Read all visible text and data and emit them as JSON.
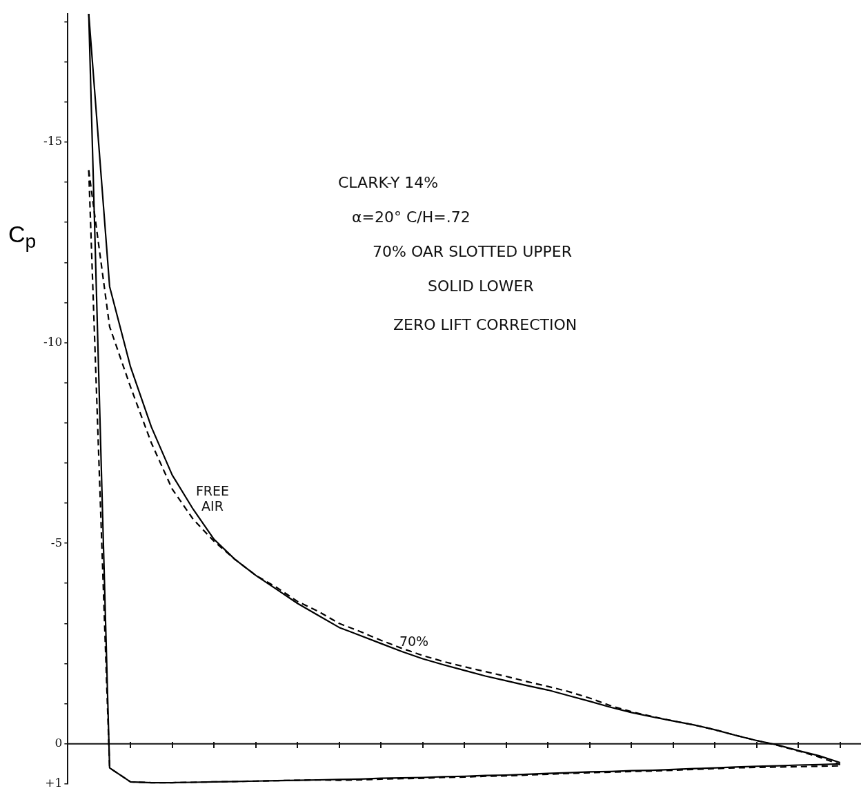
{
  "chart_data": {
    "type": "line",
    "ylabel": "C$_{p}$",
    "annotations": [
      "CLARK-Y 14%",
      "α=20°   C/H=.72",
      "70% OAR SLOTTED UPPER",
      "SOLID LOWER",
      "ZERO LIFT CORRECTION"
    ],
    "categories": [
      null,
      null,
      null,
      null,
      null,
      null,
      null,
      null,
      null,
      null,
      null,
      null,
      null,
      null,
      null,
      null,
      null,
      null,
      null,
      null,
      null,
      null,
      null,
      null,
      null,
      null,
      null,
      null,
      null,
      null,
      null,
      null,
      null,
      null,
      null,
      null,
      null,
      null,
      null
    ],
    "ylim": [
      1,
      -18.2
    ],
    "yticks": [
      {
        "value": 1,
        "label": "+1"
      },
      0,
      {
        "value": -1,
        "label": null
      },
      {
        "value": -2,
        "label": null
      },
      {
        "value": -3,
        "label": null
      },
      {
        "value": -4,
        "label": null
      },
      -5,
      {
        "value": -6,
        "label": null
      },
      {
        "value": -7,
        "label": null
      },
      {
        "value": -8,
        "label": null
      },
      {
        "value": -9,
        "label": null
      },
      -10,
      {
        "value": -11,
        "label": null
      },
      {
        "value": -12,
        "label": null
      },
      {
        "value": -13,
        "label": null
      },
      {
        "value": -14,
        "label": null
      },
      -15,
      {
        "value": -16,
        "label": null
      },
      {
        "value": -17,
        "label": null
      },
      {
        "value": -18,
        "label": null
      }
    ],
    "ref_lines": [
      {
        "axis": "y",
        "value": 0,
        "color": "#111111"
      }
    ],
    "tick_labels": "y",
    "legend": false,
    "grid": false,
    "marker": "none",
    "series": [
      {
        "name": "FREE AIR",
        "color": "#000000",
        "line_style": "solid",
        "values": [
          null,
          -18.2,
          -11.4,
          -9.4,
          -7.9,
          -6.7,
          -5.85,
          -5.1,
          -4.6,
          -4.2,
          -3.85,
          -3.5,
          -3.2,
          -2.9,
          -2.7,
          -2.5,
          -2.3,
          -2.12,
          -1.97,
          -1.83,
          -1.69,
          -1.57,
          -1.45,
          -1.34,
          -1.2,
          -1.06,
          -0.91,
          -0.78,
          -0.67,
          -0.57,
          -0.47,
          -0.35,
          -0.21,
          -0.08,
          0.03,
          0.17,
          0.3,
          0.47,
          null
        ]
      },
      {
        "color": "#000000",
        "line_style": "solid",
        "values": [
          null,
          -18.2,
          0.6,
          0.95,
          0.97,
          0.97,
          0.96,
          0.95,
          0.94,
          0.93,
          0.92,
          0.91,
          0.9,
          0.89,
          0.88,
          0.86,
          0.85,
          0.84,
          0.82,
          0.81,
          0.79,
          0.78,
          0.76,
          0.74,
          0.72,
          0.7,
          0.69,
          0.67,
          0.66,
          0.64,
          0.62,
          0.6,
          0.58,
          0.56,
          0.55,
          0.53,
          0.52,
          0.5,
          null
        ]
      },
      {
        "name": "70%",
        "color": "#000000",
        "line_style": "dashed",
        "values": [
          null,
          -14.3,
          -10.4,
          -8.9,
          -7.5,
          -6.35,
          -5.6,
          -5.05,
          -4.6,
          -4.2,
          -3.9,
          -3.55,
          -3.3,
          -3.0,
          -2.8,
          -2.58,
          -2.38,
          -2.2,
          -2.05,
          -1.92,
          -1.8,
          -1.68,
          -1.55,
          -1.43,
          -1.3,
          -1.14,
          -0.95,
          -0.8,
          -0.68,
          -0.57,
          -0.47,
          -0.35,
          -0.21,
          -0.08,
          0.04,
          0.18,
          0.33,
          0.52,
          null
        ]
      },
      {
        "color": "#000000",
        "line_style": "dashed",
        "values": [
          null,
          -14.3,
          0.6,
          0.95,
          0.97,
          0.97,
          0.96,
          0.95,
          0.94,
          0.93,
          0.92,
          0.91,
          0.9,
          0.91,
          0.9,
          0.88,
          0.87,
          0.86,
          0.84,
          0.83,
          0.81,
          0.8,
          0.78,
          0.76,
          0.74,
          0.72,
          0.71,
          0.69,
          0.68,
          0.66,
          0.64,
          0.62,
          0.6,
          0.59,
          0.58,
          0.57,
          0.56,
          0.55,
          null
        ]
      }
    ]
  }
}
